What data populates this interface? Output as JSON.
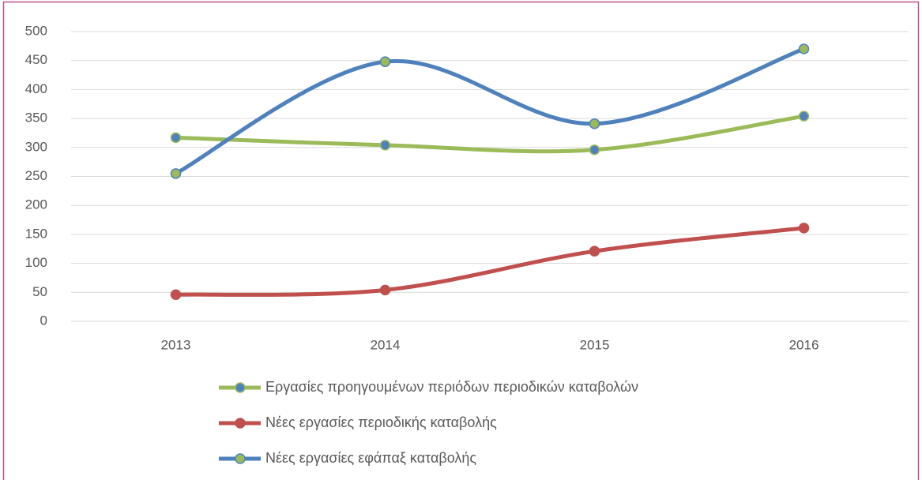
{
  "chart_data": {
    "type": "line",
    "smooth": true,
    "categories": [
      "2013",
      "2014",
      "2015",
      "2016"
    ],
    "series": [
      {
        "name": "Εργασίες προηγουμένων περιόδων περιοδικών καταβολών",
        "color": "#9bbb59",
        "marker_color": "#4f81bd",
        "values": [
          317,
          304,
          296,
          354
        ]
      },
      {
        "name": "Νέες εργασίες περιοδικής καταβολής",
        "color": "#c0504d",
        "marker_color": "#c0504d",
        "values": [
          46,
          54,
          121,
          161
        ]
      },
      {
        "name": "Νέες εργασίες εφάπαξ καταβολής",
        "color": "#4f81bd",
        "marker_color": "#9bbb59",
        "values": [
          255,
          448,
          341,
          470
        ]
      }
    ],
    "ylim": [
      0,
      500
    ],
    "yticks": [
      0,
      50,
      100,
      150,
      200,
      250,
      300,
      350,
      400,
      450,
      500
    ],
    "grid": true,
    "legend": "bottom"
  }
}
